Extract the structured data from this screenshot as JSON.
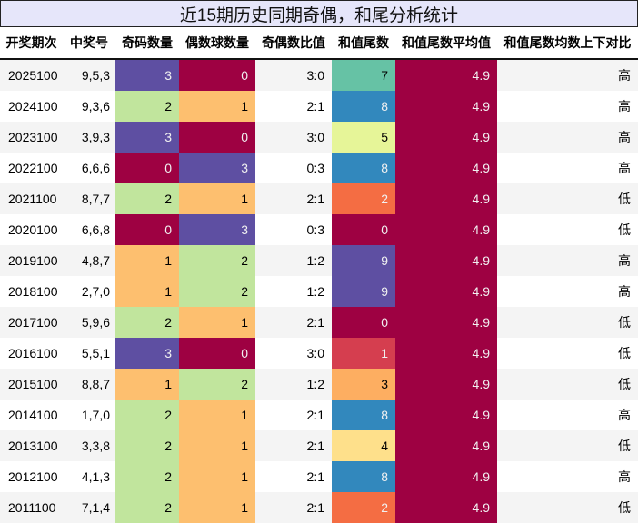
{
  "title": "近15期历史同期奇偶，和尾分析统计",
  "columns": [
    "开奖期次",
    "中奖号",
    "奇码数量",
    "偶数球数量",
    "奇偶数比值",
    "和值尾数",
    "和值尾数平均值",
    "和值尾数均数上下对比"
  ],
  "colors": {
    "0": "#9e0142",
    "1": "#d53e4f",
    "2": "#f46d43",
    "3": "#fdae61",
    "4": "#fee08b",
    "5": "#e6f598",
    "6": "#abdda4",
    "7": "#66c2a5",
    "8": "#3288bd",
    "9": "#5e4fa2",
    "odd_count": {
      "0": "#9e0142",
      "1": "#fdbf6f",
      "2": "#c1e59d",
      "3": "#5e4fa2"
    },
    "avg": "#9e0142",
    "zebra": "#f4f4f4"
  },
  "rows": [
    {
      "period": "2025100",
      "numbers": "9,5,3",
      "odd": "3",
      "even": "0",
      "ratio": "3:0",
      "tail": "7",
      "avg": "4.9",
      "cmp": "高"
    },
    {
      "period": "2024100",
      "numbers": "9,3,6",
      "odd": "2",
      "even": "1",
      "ratio": "2:1",
      "tail": "8",
      "avg": "4.9",
      "cmp": "高"
    },
    {
      "period": "2023100",
      "numbers": "3,9,3",
      "odd": "3",
      "even": "0",
      "ratio": "3:0",
      "tail": "5",
      "avg": "4.9",
      "cmp": "高"
    },
    {
      "period": "2022100",
      "numbers": "6,6,6",
      "odd": "0",
      "even": "3",
      "ratio": "0:3",
      "tail": "8",
      "avg": "4.9",
      "cmp": "高"
    },
    {
      "period": "2021100",
      "numbers": "8,7,7",
      "odd": "2",
      "even": "1",
      "ratio": "2:1",
      "tail": "2",
      "avg": "4.9",
      "cmp": "低"
    },
    {
      "period": "2020100",
      "numbers": "6,6,8",
      "odd": "0",
      "even": "3",
      "ratio": "0:3",
      "tail": "0",
      "avg": "4.9",
      "cmp": "低"
    },
    {
      "period": "2019100",
      "numbers": "4,8,7",
      "odd": "1",
      "even": "2",
      "ratio": "1:2",
      "tail": "9",
      "avg": "4.9",
      "cmp": "高"
    },
    {
      "period": "2018100",
      "numbers": "2,7,0",
      "odd": "1",
      "even": "2",
      "ratio": "1:2",
      "tail": "9",
      "avg": "4.9",
      "cmp": "高"
    },
    {
      "period": "2017100",
      "numbers": "5,9,6",
      "odd": "2",
      "even": "1",
      "ratio": "2:1",
      "tail": "0",
      "avg": "4.9",
      "cmp": "低"
    },
    {
      "period": "2016100",
      "numbers": "5,5,1",
      "odd": "3",
      "even": "0",
      "ratio": "3:0",
      "tail": "1",
      "avg": "4.9",
      "cmp": "低"
    },
    {
      "period": "2015100",
      "numbers": "8,8,7",
      "odd": "1",
      "even": "2",
      "ratio": "1:2",
      "tail": "3",
      "avg": "4.9",
      "cmp": "低"
    },
    {
      "period": "2014100",
      "numbers": "1,7,0",
      "odd": "2",
      "even": "1",
      "ratio": "2:1",
      "tail": "8",
      "avg": "4.9",
      "cmp": "高"
    },
    {
      "period": "2013100",
      "numbers": "3,3,8",
      "odd": "2",
      "even": "1",
      "ratio": "2:1",
      "tail": "4",
      "avg": "4.9",
      "cmp": "低"
    },
    {
      "period": "2012100",
      "numbers": "4,1,3",
      "odd": "2",
      "even": "1",
      "ratio": "2:1",
      "tail": "8",
      "avg": "4.9",
      "cmp": "高"
    },
    {
      "period": "2011100",
      "numbers": "7,1,4",
      "odd": "2",
      "even": "1",
      "ratio": "2:1",
      "tail": "2",
      "avg": "4.9",
      "cmp": "低"
    }
  ],
  "chart_data": {
    "type": "table",
    "title": "近15期历史同期奇偶，和尾分析统计",
    "columns": [
      "开奖期次",
      "中奖号",
      "奇码数量",
      "偶数球数量",
      "奇偶数比值",
      "和值尾数",
      "和值尾数平均值",
      "和值尾数均数上下对比"
    ],
    "rows": [
      [
        "2025100",
        "9,5,3",
        3,
        0,
        "3:0",
        7,
        4.9,
        "高"
      ],
      [
        "2024100",
        "9,3,6",
        2,
        1,
        "2:1",
        8,
        4.9,
        "高"
      ],
      [
        "2023100",
        "3,9,3",
        3,
        0,
        "3:0",
        5,
        4.9,
        "高"
      ],
      [
        "2022100",
        "6,6,6",
        0,
        3,
        "0:3",
        8,
        4.9,
        "高"
      ],
      [
        "2021100",
        "8,7,7",
        2,
        1,
        "2:1",
        2,
        4.9,
        "低"
      ],
      [
        "2020100",
        "6,6,8",
        0,
        3,
        "0:3",
        0,
        4.9,
        "低"
      ],
      [
        "2019100",
        "4,8,7",
        1,
        2,
        "1:2",
        9,
        4.9,
        "高"
      ],
      [
        "2018100",
        "2,7,0",
        1,
        2,
        "1:2",
        9,
        4.9,
        "高"
      ],
      [
        "2017100",
        "5,9,6",
        2,
        1,
        "2:1",
        0,
        4.9,
        "低"
      ],
      [
        "2016100",
        "5,5,1",
        3,
        0,
        "3:0",
        1,
        4.9,
        "低"
      ],
      [
        "2015100",
        "8,8,7",
        1,
        2,
        "1:2",
        3,
        4.9,
        "低"
      ],
      [
        "2014100",
        "1,7,0",
        2,
        1,
        "2:1",
        8,
        4.9,
        "高"
      ],
      [
        "2013100",
        "3,3,8",
        2,
        1,
        "2:1",
        4,
        4.9,
        "低"
      ],
      [
        "2012100",
        "4,1,3",
        2,
        1,
        "2:1",
        8,
        4.9,
        "高"
      ],
      [
        "2011100",
        "7,1,4",
        2,
        1,
        "2:1",
        2,
        4.9,
        "低"
      ]
    ],
    "heatmap_columns": [
      "奇码数量",
      "偶数球数量",
      "和值尾数",
      "和值尾数平均值"
    ],
    "colormap": "Spectral"
  }
}
